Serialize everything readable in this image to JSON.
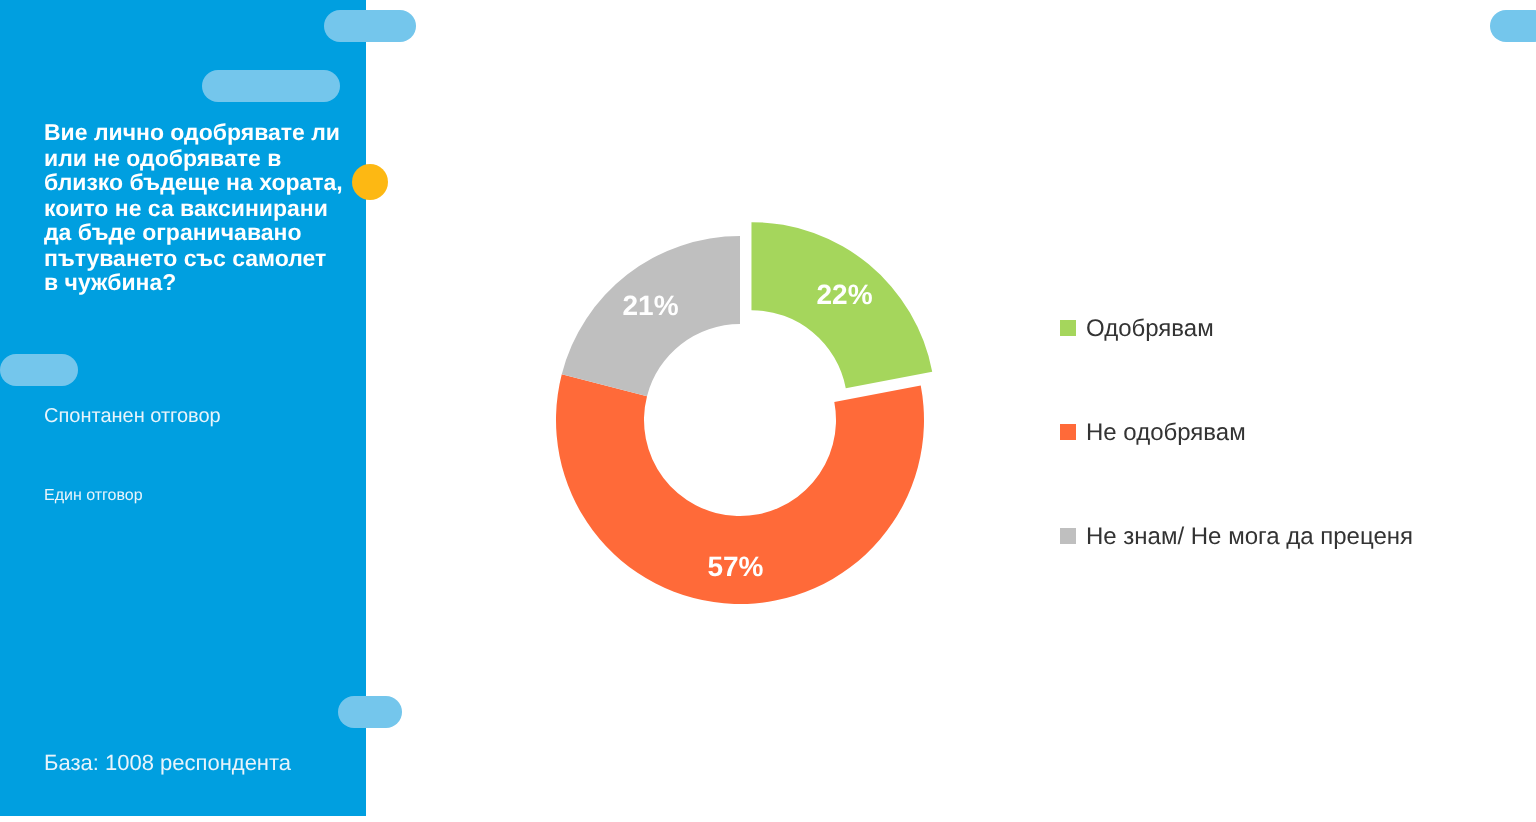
{
  "chart_data": {
    "type": "donut",
    "title": "Вие лично одобрявате ли или не одобрявате в близко бъдеще на хората, които не са ваксинирани да бъде ограничавано пътуването със самолет в чужбина?",
    "annotations": [
      "Спонтанен отговор",
      "Един отговор",
      "База: 1008 респондента"
    ],
    "categories": [
      "Одобрявам",
      "Не одобрявам",
      "Не знам/ Не мога да преценя"
    ],
    "values": [
      22,
      57,
      21
    ],
    "colors": [
      "#a5d65c",
      "#ff6a39",
      "#bfbfbf"
    ],
    "value_labels": [
      "22%",
      "57%",
      "21%"
    ],
    "legend": "right"
  }
}
